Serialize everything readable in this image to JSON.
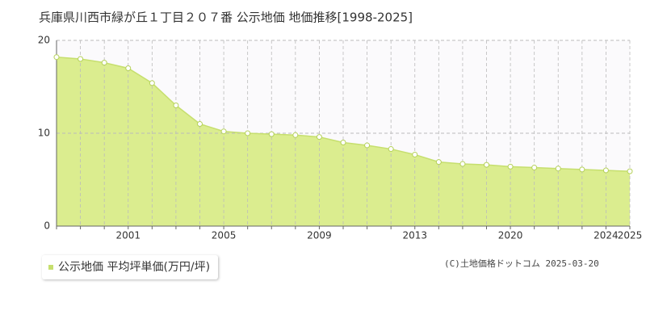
{
  "chart_data": {
    "type": "area",
    "title": "兵庫県川西市緑が丘１丁目２０７番 公示地価 地価推移[1998-2025]",
    "credit": "(C)土地価格ドットコム 2025-03-20",
    "categories": [
      null,
      null,
      null,
      "2001",
      null,
      null,
      null,
      "2005",
      null,
      null,
      null,
      "2009",
      null,
      null,
      null,
      "2013",
      null,
      null,
      null,
      "2020",
      null,
      null,
      null,
      "2024",
      "2025"
    ],
    "series": [
      {
        "name": "公示地価 平均坪単価(万円/坪)",
        "color": "#c6df6e",
        "values": [
          18.2,
          18.0,
          17.6,
          17.0,
          15.4,
          13.0,
          11.0,
          10.2,
          10.0,
          9.9,
          9.8,
          9.6,
          9.0,
          8.7,
          8.3,
          7.7,
          6.9,
          6.7,
          6.6,
          6.4,
          6.3,
          6.2,
          6.1,
          6.0,
          5.9
        ]
      }
    ],
    "ylim": [
      0,
      20
    ],
    "yticks": [
      0,
      10,
      20
    ],
    "grid": true
  }
}
